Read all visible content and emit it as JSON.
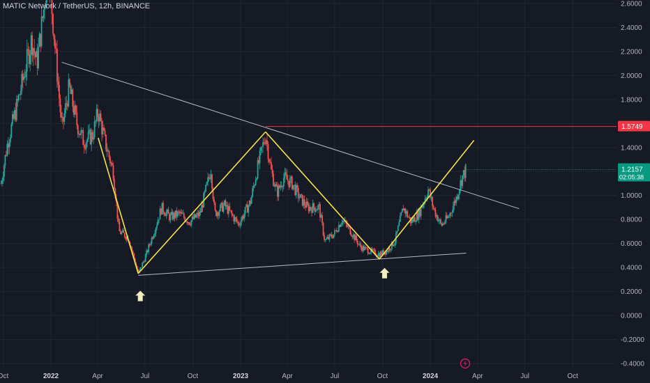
{
  "header": {
    "symbol_title": "MATIC Network / TetherUS, 12h, BINANCE"
  },
  "price_tags": {
    "resistance_price": "1.5749",
    "last_price": "1.2157",
    "countdown": "02:05:38"
  },
  "colors": {
    "background": "#161a25",
    "grid": "#222633",
    "up_candle": "#26a69a",
    "down_candle": "#ef5350",
    "pattern_line": "#f5e34a",
    "trend_line": "#b8bcc8",
    "resistance_line": "#f23645",
    "last_price_tag": "#089981",
    "arrow": "#efeec0",
    "axis_text": "#b2b5be"
  },
  "icons": {
    "bottom_marker": "up-arrow-icon",
    "lightning": "lightning-icon"
  },
  "chart_data": {
    "type": "candlestick",
    "title": "MATIC Network / TetherUS, 12h, BINANCE",
    "y_axis": {
      "side": "right",
      "range": [
        -0.43,
        2.63
      ],
      "ticks": [
        2.6,
        2.4,
        2.2,
        2.0,
        1.8,
        1.6,
        1.4,
        1.2,
        1.0,
        0.8,
        0.6,
        0.4,
        0.2,
        0.0,
        -0.2,
        -0.4
      ],
      "tick_labels": [
        "2.6000",
        "2.4000",
        "2.2000",
        "2.0000",
        "1.8000",
        "1.6000",
        "1.4000",
        "1.2000",
        "1.0000",
        "0.8000",
        "0.6000",
        "0.4000",
        "0.2000",
        "0.0000",
        "-0.2000",
        "-0.4000"
      ]
    },
    "x_axis": {
      "ticks": [
        "2021-10",
        "2022-01",
        "2022-04",
        "2022-07",
        "2022-10",
        "2023-01",
        "2023-04",
        "2023-07",
        "2023-10",
        "2024-01",
        "2024-04",
        "2024-07",
        "2024-10"
      ],
      "tick_labels": [
        "Oct",
        "2022",
        "Apr",
        "Jul",
        "Oct",
        "2023",
        "Apr",
        "Jul",
        "Oct",
        "2024",
        "Apr",
        "Jul",
        "Oct"
      ],
      "bold_labels": [
        "2022",
        "2023",
        "2024"
      ]
    },
    "grid": true,
    "price_path": [
      [
        "2021-09-27",
        1.1
      ],
      [
        "2021-10-10",
        1.45
      ],
      [
        "2021-10-25",
        1.7
      ],
      [
        "2021-11-10",
        2.0
      ],
      [
        "2021-11-25",
        2.3
      ],
      [
        "2021-12-05",
        2.1
      ],
      [
        "2021-12-18",
        2.55
      ],
      [
        "2021-12-27",
        2.9
      ],
      [
        "2022-01-06",
        2.4
      ],
      [
        "2022-01-22",
        1.55
      ],
      [
        "2022-02-05",
        1.9
      ],
      [
        "2022-02-20",
        1.6
      ],
      [
        "2022-03-05",
        1.45
      ],
      [
        "2022-03-22",
        1.5
      ],
      [
        "2022-04-02",
        1.7
      ],
      [
        "2022-04-15",
        1.45
      ],
      [
        "2022-05-01",
        1.2
      ],
      [
        "2022-05-12",
        0.7
      ],
      [
        "2022-05-30",
        0.65
      ],
      [
        "2022-06-18",
        0.35
      ],
      [
        "2022-07-01",
        0.48
      ],
      [
        "2022-07-20",
        0.72
      ],
      [
        "2022-08-02",
        0.9
      ],
      [
        "2022-08-18",
        0.82
      ],
      [
        "2022-09-05",
        0.85
      ],
      [
        "2022-09-25",
        0.78
      ],
      [
        "2022-10-15",
        0.85
      ],
      [
        "2022-11-05",
        1.22
      ],
      [
        "2022-11-12",
        0.85
      ],
      [
        "2022-12-01",
        0.92
      ],
      [
        "2022-12-28",
        0.76
      ],
      [
        "2023-01-20",
        0.95
      ],
      [
        "2023-02-01",
        1.2
      ],
      [
        "2023-02-18",
        1.51
      ],
      [
        "2023-03-01",
        1.2
      ],
      [
        "2023-03-12",
        1.02
      ],
      [
        "2023-03-25",
        1.15
      ],
      [
        "2023-04-10",
        1.1
      ],
      [
        "2023-04-25",
        0.98
      ],
      [
        "2023-05-10",
        0.9
      ],
      [
        "2023-06-01",
        0.9
      ],
      [
        "2023-06-12",
        0.62
      ],
      [
        "2023-06-30",
        0.68
      ],
      [
        "2023-07-15",
        0.8
      ],
      [
        "2023-08-01",
        0.7
      ],
      [
        "2023-08-20",
        0.57
      ],
      [
        "2023-09-10",
        0.53
      ],
      [
        "2023-09-25",
        0.51
      ],
      [
        "2023-10-10",
        0.54
      ],
      [
        "2023-10-25",
        0.62
      ],
      [
        "2023-11-10",
        0.9
      ],
      [
        "2023-11-25",
        0.78
      ],
      [
        "2023-12-10",
        0.85
      ],
      [
        "2023-12-28",
        1.05
      ],
      [
        "2024-01-08",
        0.88
      ],
      [
        "2024-01-22",
        0.75
      ],
      [
        "2024-02-05",
        0.82
      ],
      [
        "2024-02-20",
        0.98
      ],
      [
        "2024-03-02",
        1.15
      ],
      [
        "2024-03-10",
        1.2157
      ]
    ],
    "pattern_lines": [
      {
        "from": [
          "2022-04-02",
          1.48
        ],
        "to": [
          "2022-06-18",
          0.35
        ]
      },
      {
        "from": [
          "2022-06-18",
          0.35
        ],
        "to": [
          "2023-02-18",
          1.53
        ]
      },
      {
        "from": [
          "2023-02-18",
          1.53
        ],
        "to": [
          "2023-09-25",
          0.47
        ]
      },
      {
        "from": [
          "2023-09-25",
          0.47
        ],
        "to": [
          "2024-03-25",
          1.46
        ]
      }
    ],
    "trend_lines": [
      {
        "from": [
          "2022-01-22",
          2.11
        ],
        "to": [
          "2024-06-20",
          0.89
        ]
      },
      {
        "from": [
          "2022-06-18",
          0.335
        ],
        "to": [
          "2024-03-10",
          0.52
        ]
      }
    ],
    "resistance_level": {
      "value": 1.5749,
      "from": "2023-02-18"
    },
    "last_price": 1.2157,
    "bottom_markers": [
      {
        "x": "2022-06-22",
        "y": 0.16
      },
      {
        "x": "2023-10-05",
        "y": 0.35
      }
    ]
  }
}
